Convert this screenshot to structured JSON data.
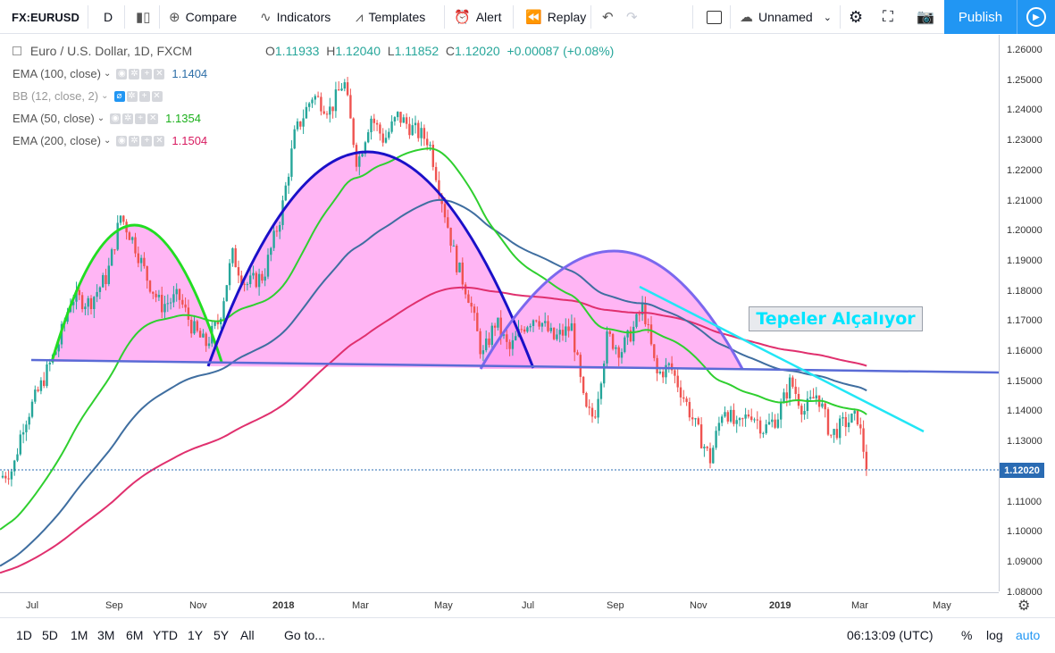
{
  "toolbar": {
    "symbol": "FX:EURUSD",
    "interval": "D",
    "compare": "Compare",
    "indicators": "Indicators",
    "templates": "Templates",
    "alert": "Alert",
    "replay": "Replay",
    "layout_name": "Unnamed",
    "publish": "Publish"
  },
  "legend": {
    "symbol_title": "Euro / U.S. Dollar, 1D, FXCM",
    "ohlc": {
      "o_label": "O",
      "o": "1.11933",
      "h_label": "H",
      "h": "1.12040",
      "l_label": "L",
      "l": "1.11852",
      "c_label": "C",
      "c": "1.12020",
      "change": "+0.00087 (+0.08%)"
    },
    "studies": [
      {
        "name": "EMA (100, close)",
        "value": "1.1404",
        "color": "#3a7bd5"
      },
      {
        "name": "BB (12, close, 2)",
        "value": "",
        "color": "#2196f3"
      },
      {
        "name": "EMA (50, close)",
        "value": "1.1354",
        "color": "#2ecc2e"
      },
      {
        "name": "EMA (200, close)",
        "value": "1.1504",
        "color": "#d81b60"
      }
    ]
  },
  "annotation": "Tepeler Alçalıyor",
  "price_axis": [
    "1.26000",
    "1.25000",
    "1.24000",
    "1.23000",
    "1.22000",
    "1.21000",
    "1.20000",
    "1.19000",
    "1.18000",
    "1.17000",
    "1.16000",
    "1.15000",
    "1.14000",
    "1.13000",
    "1.12000",
    "1.11000",
    "1.10000",
    "1.09000",
    "1.08000"
  ],
  "current_price": "1.12020",
  "time_axis": [
    {
      "label": "Jul",
      "bold": false
    },
    {
      "label": "Sep",
      "bold": false
    },
    {
      "label": "Nov",
      "bold": false
    },
    {
      "label": "2018",
      "bold": true
    },
    {
      "label": "Mar",
      "bold": false
    },
    {
      "label": "May",
      "bold": false
    },
    {
      "label": "Jul",
      "bold": false
    },
    {
      "label": "Sep",
      "bold": false
    },
    {
      "label": "Nov",
      "bold": false
    },
    {
      "label": "2019",
      "bold": true
    },
    {
      "label": "Mar",
      "bold": false
    },
    {
      "label": "May",
      "bold": false
    }
  ],
  "bottom": {
    "ranges": [
      "1D",
      "5D",
      "1M",
      "3M",
      "6M",
      "YTD",
      "1Y",
      "5Y",
      "All"
    ],
    "goto": "Go to...",
    "clock": "06:13:09 (UTC)",
    "percent": "%",
    "log": "log",
    "auto": "auto"
  },
  "colors": {
    "up": "#26a69a",
    "down": "#ef5350",
    "accent": "#2196f3"
  }
}
